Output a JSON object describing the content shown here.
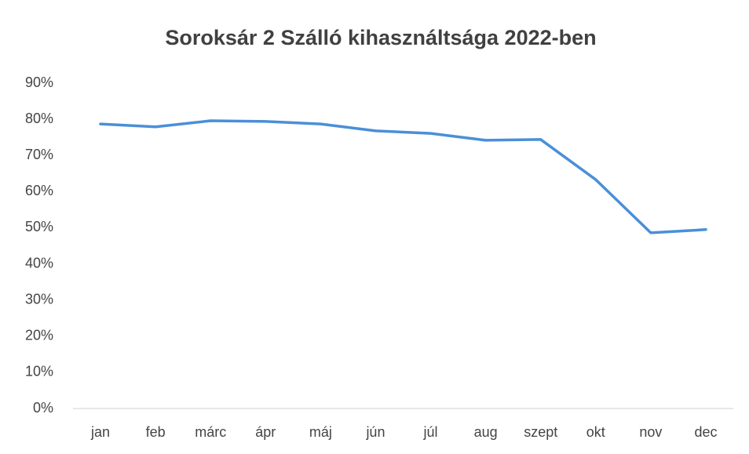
{
  "chart_data": {
    "type": "line",
    "title": "Soroksár 2 Szálló kihasználtsága 2022-ben",
    "categories": [
      "jan",
      "feb",
      "márc",
      "ápr",
      "máj",
      "jún",
      "júl",
      "aug",
      "szept",
      "okt",
      "nov",
      "dec"
    ],
    "values": [
      78.7,
      77.9,
      79.6,
      79.4,
      78.7,
      76.8,
      76.1,
      74.2,
      74.4,
      63.3,
      48.6,
      49.5
    ],
    "color": "#4a8fd8",
    "ylim": [
      0,
      90
    ],
    "yticks": [
      {
        "value": 0,
        "label": "0%"
      },
      {
        "value": 10,
        "label": "10%"
      },
      {
        "value": 20,
        "label": "20%"
      },
      {
        "value": 30,
        "label": "30%"
      },
      {
        "value": 40,
        "label": "40%"
      },
      {
        "value": 50,
        "label": "50%"
      },
      {
        "value": 60,
        "label": "60%"
      },
      {
        "value": 70,
        "label": "70%"
      },
      {
        "value": 80,
        "label": "80%"
      },
      {
        "value": 90,
        "label": "90%"
      }
    ],
    "grid": false
  }
}
